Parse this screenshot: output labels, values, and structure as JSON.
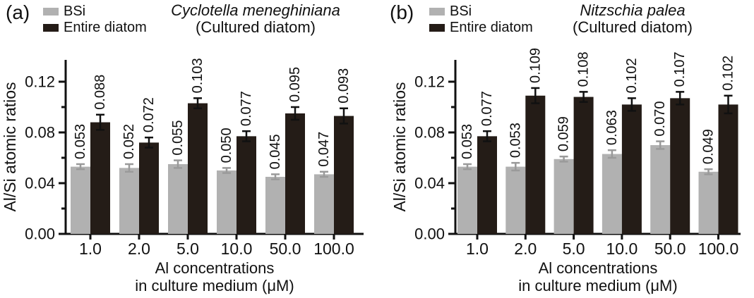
{
  "chart_data": [
    {
      "type": "bar",
      "panel_label": "(a)",
      "title": "Cyclotella meneghiniana",
      "subtitle": "(Cultured diatom)",
      "ylabel": "Al/Si atomic ratios",
      "xlabel_lines": [
        "Al concentrations",
        "in culture medium (μM)"
      ],
      "categories": [
        "1.0",
        "2.0",
        "5.0",
        "10.0",
        "50.0",
        "100.0"
      ],
      "series": [
        {
          "name": "BSi",
          "color": "#b1b1b1",
          "error_color": "#9a9a9a",
          "values": [
            0.053,
            0.052,
            0.055,
            0.05,
            0.045,
            0.047
          ],
          "errors": [
            0.002,
            0.003,
            0.003,
            0.002,
            0.002,
            0.002
          ]
        },
        {
          "name": "Entire diatom",
          "color": "#241c17",
          "error_color": "#111111",
          "values": [
            0.088,
            0.072,
            0.103,
            0.077,
            0.095,
            0.093
          ],
          "errors": [
            0.006,
            0.004,
            0.004,
            0.004,
            0.005,
            0.006
          ]
        }
      ],
      "ylim": [
        0,
        0.1372
      ],
      "yticks": [
        0,
        0.04,
        0.08,
        0.12
      ],
      "yticks_minor": [
        0.02,
        0.06,
        0.1
      ],
      "grid": false,
      "legend_position": "top-left",
      "value_labels": "rotated-90"
    },
    {
      "type": "bar",
      "panel_label": "(b)",
      "title": "Nitzschia palea",
      "subtitle": "(Cultured diatom)",
      "ylabel": "Al/Si atomic ratios",
      "xlabel_lines": [
        "Al concentrations",
        "in culture medium (μM)"
      ],
      "categories": [
        "1.0",
        "2.0",
        "5.0",
        "10.0",
        "50.0",
        "100.0"
      ],
      "series": [
        {
          "name": "BSi",
          "color": "#b1b1b1",
          "error_color": "#9a9a9a",
          "values": [
            0.053,
            0.053,
            0.059,
            0.063,
            0.07,
            0.049
          ],
          "errors": [
            0.002,
            0.003,
            0.002,
            0.003,
            0.003,
            0.002
          ]
        },
        {
          "name": "Entire diatom",
          "color": "#241c17",
          "error_color": "#111111",
          "values": [
            0.077,
            0.109,
            0.108,
            0.102,
            0.107,
            0.102
          ],
          "errors": [
            0.004,
            0.006,
            0.004,
            0.005,
            0.005,
            0.007
          ]
        }
      ],
      "ylim": [
        0,
        0.1372
      ],
      "yticks": [
        0,
        0.04,
        0.08,
        0.12
      ],
      "yticks_minor": [
        0.02,
        0.06,
        0.1
      ],
      "grid": false,
      "legend_position": "top-left",
      "value_labels": "rotated-90"
    }
  ]
}
